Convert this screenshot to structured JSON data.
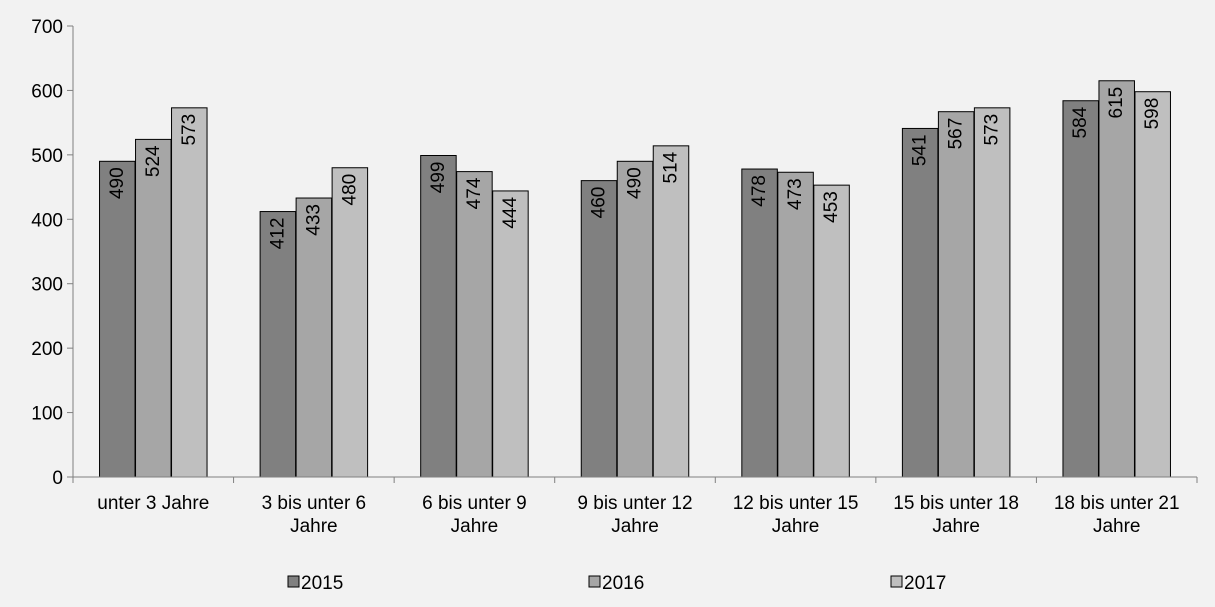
{
  "chart_data": {
    "type": "bar",
    "title": "",
    "xlabel": "",
    "ylabel": "",
    "ylim": [
      0,
      700
    ],
    "yticks": [
      "0",
      "100",
      "200",
      "300",
      "400",
      "500",
      "600",
      "700"
    ],
    "grid": false,
    "legend_position": "bottom",
    "categories": [
      [
        "unter 3 Jahre"
      ],
      [
        "3 bis unter 6",
        "Jahre"
      ],
      [
        "6 bis unter 9",
        "Jahre"
      ],
      [
        "9 bis unter 12",
        "Jahre"
      ],
      [
        "12 bis unter 15",
        "Jahre"
      ],
      [
        "15 bis unter 18",
        "Jahre"
      ],
      [
        "18 bis unter 21",
        "Jahre"
      ]
    ],
    "series": [
      {
        "name": "2015",
        "color": "#808080",
        "values": [
          490,
          412,
          499,
          460,
          478,
          541,
          584
        ]
      },
      {
        "name": "2016",
        "color": "#a6a6a6",
        "values": [
          524,
          433,
          474,
          490,
          473,
          567,
          615
        ]
      },
      {
        "name": "2017",
        "color": "#bfbfbf",
        "values": [
          573,
          480,
          444,
          514,
          453,
          573,
          598
        ]
      }
    ]
  }
}
